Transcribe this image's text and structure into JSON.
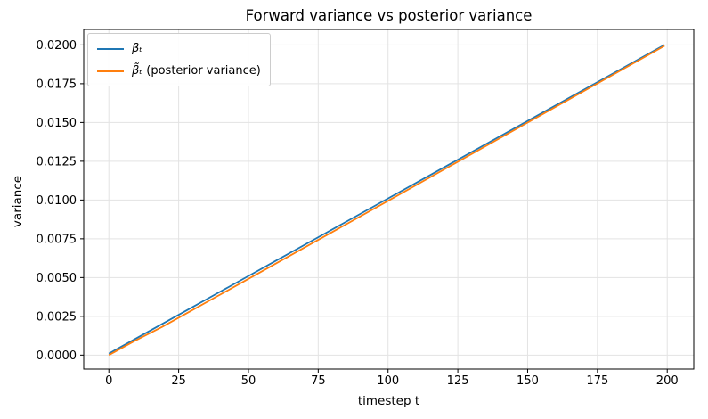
{
  "title": "Forward variance vs posterior variance",
  "chart_data": {
    "type": "line",
    "title": "Forward variance vs posterior variance",
    "xlabel": "timestep t",
    "ylabel": "variance",
    "xlim": [
      -9,
      209.5
    ],
    "ylim": [
      -0.0009,
      0.021
    ],
    "xticks": [
      0,
      25,
      50,
      75,
      100,
      125,
      150,
      175,
      200
    ],
    "xtick_labels": [
      "0",
      "25",
      "50",
      "75",
      "100",
      "125",
      "150",
      "175",
      "200"
    ],
    "yticks": [
      0.0,
      0.0025,
      0.005,
      0.0075,
      0.01,
      0.0125,
      0.015,
      0.0175,
      0.02
    ],
    "ytick_labels": [
      "0.0000",
      "0.0025",
      "0.0050",
      "0.0075",
      "0.0100",
      "0.0125",
      "0.0150",
      "0.0175",
      "0.0200"
    ],
    "grid": true,
    "grid_color": "#e3e3e3",
    "frame_color": "#000000",
    "legend_position": "upper left",
    "x": [
      0,
      9,
      19,
      29,
      39,
      49,
      59,
      74,
      99,
      124,
      149,
      174,
      199
    ],
    "series": [
      {
        "name": "βₜ",
        "suffix": "",
        "color": "#1f77b4",
        "values": [
          0.0001,
          0.001,
          0.002,
          0.003,
          0.004,
          0.005,
          0.006,
          0.0075,
          0.01,
          0.0125,
          0.015,
          0.0175,
          0.02
        ]
      },
      {
        "name": "β̃ₜ",
        "suffix": " (posterior variance)",
        "color": "#ff7f0e",
        "values": [
          0.0,
          0.000894,
          0.001811,
          0.002811,
          0.003812,
          0.004816,
          0.00582,
          0.007329,
          0.009847,
          0.012369,
          0.014892,
          0.017416,
          0.019938
        ]
      }
    ]
  }
}
